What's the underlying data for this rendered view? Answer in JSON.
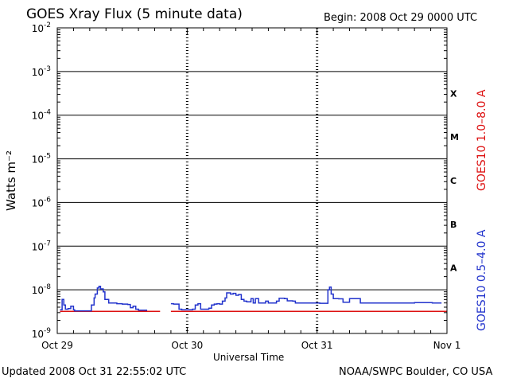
{
  "header": {
    "title": "GOES Xray Flux (5 minute data)",
    "begin": "Begin:  2008 Oct 29 0000 UTC"
  },
  "footer": {
    "updated": "Updated 2008 Oct 31 22:55:02 UTC",
    "source": "NOAA/SWPC Boulder, CO USA"
  },
  "chart_data": {
    "type": "line",
    "title": "GOES Xray Flux (5 minute data)",
    "xlabel": "Universal Time",
    "ylabel": "Watts m⁻²",
    "yscale": "log",
    "ylim": [
      1e-09,
      0.01
    ],
    "xlim": [
      0,
      72
    ],
    "x_unit": "hours since 2008 Oct 29 0000 UTC",
    "x_ticks": [
      {
        "x": 0,
        "label": "Oct 29"
      },
      {
        "x": 24,
        "label": "Oct 30"
      },
      {
        "x": 48,
        "label": "Oct 31"
      },
      {
        "x": 72,
        "label": "Nov 1"
      }
    ],
    "y_ticks": [
      {
        "exp": -9,
        "label": "10",
        "sup": "-9"
      },
      {
        "exp": -8,
        "label": "10",
        "sup": "-8"
      },
      {
        "exp": -7,
        "label": "10",
        "sup": "-7"
      },
      {
        "exp": -6,
        "label": "10",
        "sup": "-6"
      },
      {
        "exp": -5,
        "label": "10",
        "sup": "-5"
      },
      {
        "exp": -4,
        "label": "10",
        "sup": "-4"
      },
      {
        "exp": -3,
        "label": "10",
        "sup": "-3"
      },
      {
        "exp": -2,
        "label": "10",
        "sup": "-2"
      }
    ],
    "flare_classes": [
      {
        "label": "X",
        "exp": -3.5
      },
      {
        "label": "M",
        "exp": -4.5
      },
      {
        "label": "C",
        "exp": -5.5
      },
      {
        "label": "B",
        "exp": -6.5
      },
      {
        "label": "A",
        "exp": -7.5
      }
    ],
    "grid": true,
    "series": [
      {
        "name": "GOES10 1.0–8.0 A",
        "color": "#dd1111",
        "segments": [
          [
            [
              0.5,
              3.2e-09
            ],
            [
              19.0,
              3.2e-09
            ]
          ],
          [
            [
              21.0,
              3.2e-09
            ],
            [
              72.0,
              3.2e-09
            ]
          ]
        ]
      },
      {
        "name": "GOES10 0.5–4.0 A",
        "color": "#2233cc",
        "segments": [
          [
            [
              0.5,
              3.5e-09
            ],
            [
              0.9,
              6e-09
            ],
            [
              1.2,
              4.5e-09
            ],
            [
              1.5,
              3.6e-09
            ],
            [
              2.0,
              3.7e-09
            ],
            [
              2.5,
              4.2e-09
            ],
            [
              3.0,
              3.5e-09
            ],
            [
              3.2,
              3.3e-09
            ],
            [
              6.0,
              3.3e-09
            ],
            [
              6.3,
              4.5e-09
            ],
            [
              6.8,
              6.5e-09
            ],
            [
              7.0,
              8e-09
            ],
            [
              7.4,
              1.1e-08
            ],
            [
              7.7,
              1.2e-08
            ],
            [
              8.0,
              1.05e-08
            ],
            [
              8.5,
              9e-09
            ],
            [
              8.8,
              6e-09
            ],
            [
              9.5,
              5e-09
            ],
            [
              10.5,
              5e-09
            ],
            [
              11.0,
              4.8e-09
            ],
            [
              12.0,
              4.7e-09
            ],
            [
              13.0,
              4.6e-09
            ],
            [
              13.5,
              3.9e-09
            ],
            [
              14.0,
              4.2e-09
            ],
            [
              14.5,
              3.6e-09
            ],
            [
              15.0,
              3.4e-09
            ],
            [
              16.5,
              3.3e-09
            ]
          ],
          [
            [
              21.0,
              4.8e-09
            ],
            [
              21.5,
              4.7e-09
            ],
            [
              22.5,
              3.6e-09
            ],
            [
              23.0,
              3.5e-09
            ],
            [
              24.5,
              3.5e-09
            ],
            [
              25.0,
              3.6e-09
            ],
            [
              25.5,
              4.5e-09
            ],
            [
              26.0,
              4.8e-09
            ],
            [
              26.5,
              3.6e-09
            ],
            [
              27.0,
              3.6e-09
            ],
            [
              28.0,
              3.8e-09
            ],
            [
              28.5,
              4.5e-09
            ],
            [
              29.0,
              4.7e-09
            ],
            [
              29.5,
              4.8e-09
            ],
            [
              30.0,
              4.7e-09
            ],
            [
              30.5,
              5.5e-09
            ],
            [
              31.0,
              6.5e-09
            ],
            [
              31.3,
              8.5e-09
            ],
            [
              32.0,
              8e-09
            ],
            [
              32.5,
              8.3e-09
            ],
            [
              33.0,
              7.5e-09
            ],
            [
              33.5,
              7.8e-09
            ],
            [
              34.0,
              6e-09
            ],
            [
              34.5,
              5.5e-09
            ],
            [
              35.0,
              5.3e-09
            ],
            [
              35.5,
              5.3e-09
            ],
            [
              35.8,
              6.3e-09
            ],
            [
              36.2,
              5e-09
            ],
            [
              36.6,
              6.3e-09
            ],
            [
              37.2,
              5e-09
            ],
            [
              38.0,
              5e-09
            ],
            [
              38.5,
              5.5e-09
            ],
            [
              39.0,
              5e-09
            ],
            [
              40.0,
              5e-09
            ],
            [
              40.5,
              5.5e-09
            ],
            [
              41.0,
              6.4e-09
            ],
            [
              42.0,
              6.3e-09
            ],
            [
              42.5,
              5.6e-09
            ],
            [
              43.5,
              5.5e-09
            ],
            [
              44.0,
              5e-09
            ],
            [
              48.0,
              5e-09
            ],
            [
              48.5,
              4.9e-09
            ],
            [
              49.8,
              4.9e-09
            ],
            [
              50.0,
              1e-08
            ],
            [
              50.3,
              1.15e-08
            ],
            [
              50.6,
              8e-09
            ],
            [
              51.0,
              6.3e-09
            ],
            [
              52.0,
              6.2e-09
            ],
            [
              52.8,
              5.2e-09
            ],
            [
              53.5,
              5.2e-09
            ],
            [
              54.0,
              6.3e-09
            ],
            [
              55.5,
              6.3e-09
            ],
            [
              56.0,
              5e-09
            ],
            [
              60.0,
              5e-09
            ],
            [
              62.0,
              5e-09
            ],
            [
              64.0,
              5e-09
            ],
            [
              65.5,
              5e-09
            ],
            [
              66.0,
              5.1e-09
            ],
            [
              69.3,
              5e-09
            ],
            [
              71.0,
              5e-09
            ]
          ]
        ]
      }
    ]
  }
}
